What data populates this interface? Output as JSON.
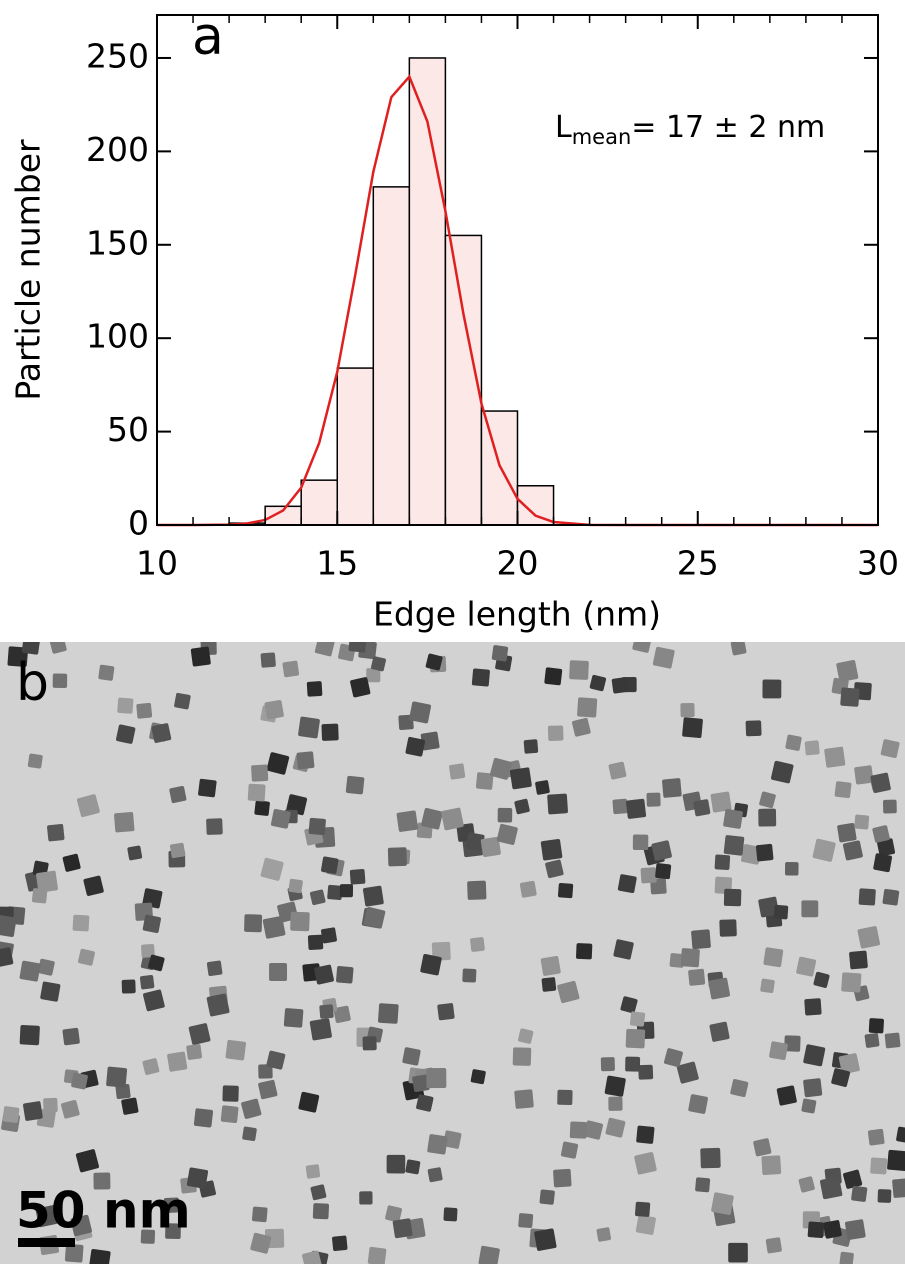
{
  "chart_data": {
    "type": "histogram",
    "panel_label": "a",
    "xlabel": "Edge length (nm)",
    "ylabel": "Particle number",
    "annotation": {
      "main": "L",
      "sub": "mean",
      "rest": "= 17 ± 2 nm"
    },
    "bins": [
      12,
      13,
      14,
      15,
      16,
      17,
      18,
      19,
      20,
      21
    ],
    "counts": [
      1,
      10,
      24,
      84,
      181,
      250,
      155,
      61,
      21
    ],
    "color": "#fde8e8",
    "fit": {
      "color": "#e02020",
      "x": [
        10,
        11,
        12,
        12.5,
        13,
        13.5,
        14,
        14.5,
        15,
        15.5,
        16,
        16.5,
        17,
        17.5,
        18,
        18.5,
        19,
        19.5,
        20,
        20.5,
        21,
        22,
        23,
        25,
        30
      ],
      "values": [
        0,
        0,
        0.2,
        0.8,
        2.7,
        7.8,
        20,
        44,
        82,
        134,
        189,
        229,
        240,
        216,
        168,
        113,
        65,
        32,
        14,
        5,
        1.6,
        0.1,
        0,
        0,
        0
      ]
    },
    "xlim": [
      10,
      30
    ],
    "ylim": [
      0,
      273
    ],
    "xticks": [
      10,
      15,
      20,
      25,
      30
    ],
    "xminorticks": [
      11,
      12,
      13,
      14,
      16,
      17,
      18,
      19,
      21,
      22,
      23,
      24,
      26,
      27,
      28,
      29
    ],
    "yticks": [
      0,
      50,
      100,
      150,
      200,
      250
    ]
  },
  "image": {
    "panel_label": "b",
    "scale_bar": "50 nm"
  }
}
